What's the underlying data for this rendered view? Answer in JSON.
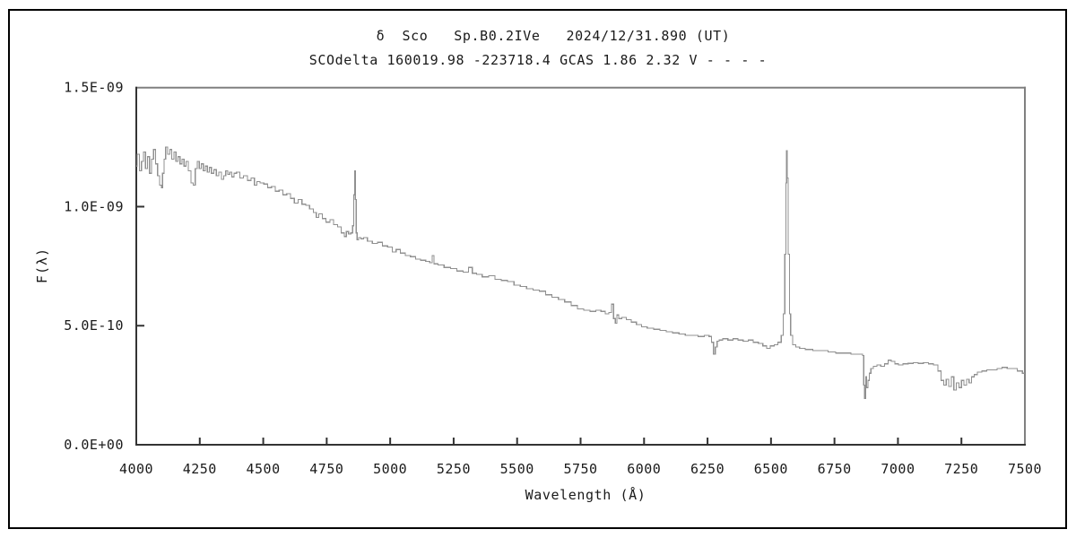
{
  "window": {
    "background_color": "#ffffff",
    "border_color": "#000000"
  },
  "chart_data": {
    "type": "line",
    "title": "δ  Sco   Sp.B0.2IVe   2024/12/31.890 (UT)",
    "subtitle": "SCOdelta 160019.98 -223718.4 GCAS 1.86 2.32 V - - - -",
    "xlabel": "Wavelength (Å)",
    "ylabel": "F(λ)",
    "xlim": [
      4000,
      7500
    ],
    "ylim": [
      0,
      1.5e-09
    ],
    "grid": false,
    "legend": null,
    "x_ticks": [
      4000,
      4250,
      4500,
      4750,
      5000,
      5250,
      5500,
      5750,
      6000,
      6250,
      6500,
      6750,
      7000,
      7250,
      7500
    ],
    "y_ticks": [
      {
        "value": 0,
        "label": "0.0E+00"
      },
      {
        "value": 5e-10,
        "label": "5.0E-10"
      },
      {
        "value": 1e-09,
        "label": "1.0E-09"
      },
      {
        "value": 1.5e-09,
        "label": "1.5E-09"
      }
    ],
    "colors": {
      "line": "#909090",
      "frame_shadow": "#808080",
      "axis": "#333333"
    },
    "flux_unit_scale": 1e-10,
    "points": [
      [
        4000,
        11.7
      ],
      [
        4008,
        12.2
      ],
      [
        4016,
        11.5
      ],
      [
        4024,
        11.9
      ],
      [
        4032,
        12.3
      ],
      [
        4040,
        11.6
      ],
      [
        4048,
        12.1
      ],
      [
        4056,
        11.4
      ],
      [
        4064,
        12.0
      ],
      [
        4072,
        12.4
      ],
      [
        4080,
        11.8
      ],
      [
        4088,
        11.3
      ],
      [
        4096,
        10.9
      ],
      [
        4101,
        10.8
      ],
      [
        4106,
        11.4
      ],
      [
        4112,
        12.0
      ],
      [
        4120,
        12.5
      ],
      [
        4128,
        12.2
      ],
      [
        4136,
        12.4
      ],
      [
        4144,
        12.0
      ],
      [
        4152,
        12.3
      ],
      [
        4160,
        11.9
      ],
      [
        4168,
        12.1
      ],
      [
        4176,
        11.8
      ],
      [
        4184,
        12.0
      ],
      [
        4192,
        11.7
      ],
      [
        4200,
        11.9
      ],
      [
        4210,
        11.5
      ],
      [
        4220,
        11.0
      ],
      [
        4228,
        10.9
      ],
      [
        4236,
        11.6
      ],
      [
        4244,
        11.9
      ],
      [
        4252,
        11.6
      ],
      [
        4260,
        11.8
      ],
      [
        4268,
        11.5
      ],
      [
        4276,
        11.7
      ],
      [
        4284,
        11.45
      ],
      [
        4292,
        11.65
      ],
      [
        4300,
        11.4
      ],
      [
        4310,
        11.55
      ],
      [
        4320,
        11.3
      ],
      [
        4330,
        11.45
      ],
      [
        4340,
        11.15
      ],
      [
        4348,
        11.3
      ],
      [
        4356,
        11.5
      ],
      [
        4364,
        11.35
      ],
      [
        4372,
        11.45
      ],
      [
        4380,
        11.25
      ],
      [
        4390,
        11.4
      ],
      [
        4400,
        11.45
      ],
      [
        4415,
        11.2
      ],
      [
        4430,
        11.3
      ],
      [
        4445,
        11.1
      ],
      [
        4460,
        11.2
      ],
      [
        4471,
        10.9
      ],
      [
        4480,
        11.05
      ],
      [
        4495,
        11.0
      ],
      [
        4510,
        10.95
      ],
      [
        4525,
        10.8
      ],
      [
        4540,
        10.85
      ],
      [
        4555,
        10.65
      ],
      [
        4570,
        10.7
      ],
      [
        4585,
        10.5
      ],
      [
        4600,
        10.55
      ],
      [
        4615,
        10.35
      ],
      [
        4630,
        10.15
      ],
      [
        4645,
        10.3
      ],
      [
        4660,
        10.1
      ],
      [
        4675,
        10.05
      ],
      [
        4690,
        9.9
      ],
      [
        4705,
        9.75
      ],
      [
        4713,
        9.55
      ],
      [
        4725,
        9.7
      ],
      [
        4740,
        9.5
      ],
      [
        4755,
        9.35
      ],
      [
        4770,
        9.45
      ],
      [
        4785,
        9.25
      ],
      [
        4800,
        9.15
      ],
      [
        4815,
        8.9
      ],
      [
        4823,
        8.75
      ],
      [
        4832,
        8.95
      ],
      [
        4841,
        8.85
      ],
      [
        4849,
        8.9
      ],
      [
        4855,
        9.2
      ],
      [
        4858,
        10.5
      ],
      [
        4861,
        11.5
      ],
      [
        4864,
        10.3
      ],
      [
        4868,
        8.9
      ],
      [
        4872,
        8.6
      ],
      [
        4880,
        8.7
      ],
      [
        4890,
        8.65
      ],
      [
        4900,
        8.7
      ],
      [
        4920,
        8.55
      ],
      [
        4940,
        8.45
      ],
      [
        4960,
        8.5
      ],
      [
        4980,
        8.35
      ],
      [
        5000,
        8.3
      ],
      [
        5016,
        8.1
      ],
      [
        5030,
        8.2
      ],
      [
        5050,
        8.05
      ],
      [
        5070,
        7.95
      ],
      [
        5090,
        7.9
      ],
      [
        5110,
        7.8
      ],
      [
        5130,
        7.75
      ],
      [
        5150,
        7.7
      ],
      [
        5162,
        7.65
      ],
      [
        5169,
        7.95
      ],
      [
        5176,
        7.6
      ],
      [
        5200,
        7.55
      ],
      [
        5225,
        7.45
      ],
      [
        5250,
        7.4
      ],
      [
        5275,
        7.3
      ],
      [
        5300,
        7.25
      ],
      [
        5317,
        7.45
      ],
      [
        5330,
        7.2
      ],
      [
        5350,
        7.15
      ],
      [
        5375,
        7.05
      ],
      [
        5400,
        7.1
      ],
      [
        5425,
        6.95
      ],
      [
        5450,
        6.9
      ],
      [
        5475,
        6.85
      ],
      [
        5500,
        6.7
      ],
      [
        5525,
        6.65
      ],
      [
        5550,
        6.55
      ],
      [
        5575,
        6.5
      ],
      [
        5600,
        6.45
      ],
      [
        5625,
        6.3
      ],
      [
        5650,
        6.2
      ],
      [
        5675,
        6.1
      ],
      [
        5700,
        6.0
      ],
      [
        5725,
        5.85
      ],
      [
        5750,
        5.7
      ],
      [
        5775,
        5.65
      ],
      [
        5800,
        5.6
      ],
      [
        5820,
        5.65
      ],
      [
        5840,
        5.6
      ],
      [
        5855,
        5.5
      ],
      [
        5868,
        5.55
      ],
      [
        5876,
        5.9
      ],
      [
        5884,
        5.3
      ],
      [
        5890,
        5.1
      ],
      [
        5896,
        5.45
      ],
      [
        5905,
        5.3
      ],
      [
        5920,
        5.35
      ],
      [
        5940,
        5.25
      ],
      [
        5960,
        5.15
      ],
      [
        5980,
        5.05
      ],
      [
        6000,
        4.95
      ],
      [
        6025,
        4.9
      ],
      [
        6050,
        4.85
      ],
      [
        6075,
        4.8
      ],
      [
        6100,
        4.75
      ],
      [
        6125,
        4.7
      ],
      [
        6150,
        4.65
      ],
      [
        6175,
        4.6
      ],
      [
        6200,
        4.6
      ],
      [
        6225,
        4.55
      ],
      [
        6250,
        4.6
      ],
      [
        6262,
        4.55
      ],
      [
        6270,
        4.3
      ],
      [
        6277,
        3.8
      ],
      [
        6284,
        4.1
      ],
      [
        6292,
        4.35
      ],
      [
        6300,
        4.4
      ],
      [
        6320,
        4.45
      ],
      [
        6340,
        4.4
      ],
      [
        6360,
        4.45
      ],
      [
        6380,
        4.4
      ],
      [
        6400,
        4.35
      ],
      [
        6420,
        4.4
      ],
      [
        6440,
        4.3
      ],
      [
        6460,
        4.25
      ],
      [
        6475,
        4.15
      ],
      [
        6490,
        4.05
      ],
      [
        6505,
        4.15
      ],
      [
        6520,
        4.2
      ],
      [
        6535,
        4.3
      ],
      [
        6545,
        4.6
      ],
      [
        6552,
        5.5
      ],
      [
        6557,
        8.0
      ],
      [
        6560,
        11.0
      ],
      [
        6563,
        12.35
      ],
      [
        6566,
        11.2
      ],
      [
        6570,
        8.0
      ],
      [
        6575,
        5.5
      ],
      [
        6580,
        4.6
      ],
      [
        6590,
        4.2
      ],
      [
        6605,
        4.1
      ],
      [
        6620,
        4.05
      ],
      [
        6650,
        4.0
      ],
      [
        6680,
        3.95
      ],
      [
        6710,
        3.95
      ],
      [
        6740,
        3.9
      ],
      [
        6770,
        3.85
      ],
      [
        6800,
        3.85
      ],
      [
        6830,
        3.8
      ],
      [
        6858,
        3.8
      ],
      [
        6864,
        3.75
      ],
      [
        6867,
        2.5
      ],
      [
        6871,
        1.95
      ],
      [
        6875,
        2.85
      ],
      [
        6879,
        2.4
      ],
      [
        6884,
        2.7
      ],
      [
        6890,
        3.0
      ],
      [
        6897,
        3.2
      ],
      [
        6910,
        3.3
      ],
      [
        6925,
        3.35
      ],
      [
        6940,
        3.3
      ],
      [
        6955,
        3.4
      ],
      [
        6967,
        3.55
      ],
      [
        6980,
        3.5
      ],
      [
        6995,
        3.4
      ],
      [
        7010,
        3.35
      ],
      [
        7030,
        3.4
      ],
      [
        7050,
        3.42
      ],
      [
        7070,
        3.45
      ],
      [
        7090,
        3.42
      ],
      [
        7110,
        3.45
      ],
      [
        7130,
        3.4
      ],
      [
        7150,
        3.35
      ],
      [
        7165,
        3.1
      ],
      [
        7175,
        2.7
      ],
      [
        7185,
        2.5
      ],
      [
        7195,
        2.75
      ],
      [
        7205,
        2.45
      ],
      [
        7215,
        2.85
      ],
      [
        7225,
        2.3
      ],
      [
        7235,
        2.6
      ],
      [
        7245,
        2.4
      ],
      [
        7255,
        2.7
      ],
      [
        7265,
        2.5
      ],
      [
        7275,
        2.75
      ],
      [
        7285,
        2.6
      ],
      [
        7295,
        2.85
      ],
      [
        7305,
        2.95
      ],
      [
        7320,
        3.05
      ],
      [
        7340,
        3.1
      ],
      [
        7360,
        3.15
      ],
      [
        7380,
        3.15
      ],
      [
        7400,
        3.2
      ],
      [
        7420,
        3.25
      ],
      [
        7440,
        3.2
      ],
      [
        7460,
        3.2
      ],
      [
        7480,
        3.1
      ],
      [
        7500,
        3.0
      ]
    ]
  }
}
